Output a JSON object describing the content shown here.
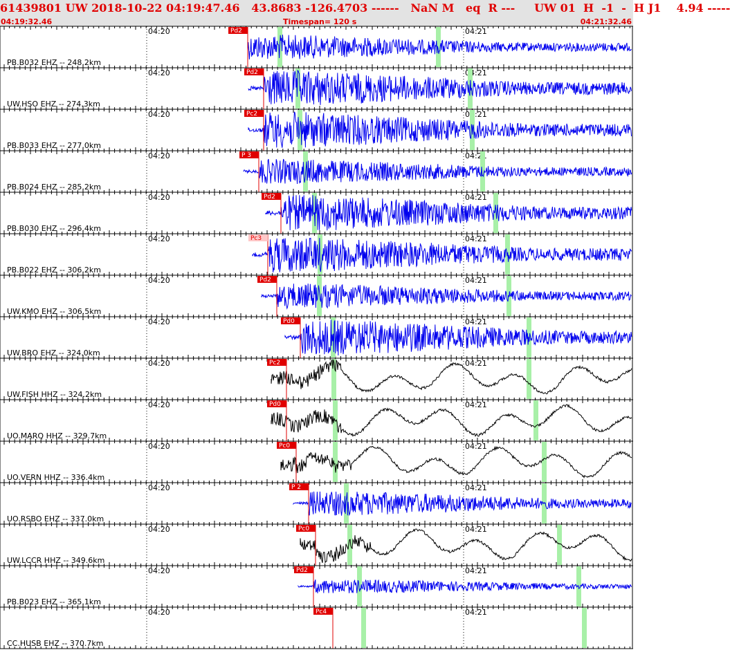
{
  "header": {
    "title": "61439801 UW 2018-10-22 04:19:47.46   43.8683 -126.4703 ------   NaN M   eq  R ---     UW 01  H  -1  -  H J1    4.94 -----",
    "start_time": "04:19:32.46",
    "timespan": "Timespan= 120 s",
    "end_time": "04:21:32.46"
  },
  "time_labels": [
    "04:20",
    "04:21"
  ],
  "colors": {
    "header_text": "#e00000",
    "velocity_trace": "#0000ee",
    "broadband_trace": "#000000",
    "pick": "#e00000",
    "window_marker": "#a8f0a8"
  },
  "traces": [
    {
      "label": "PB.B032 EHZ -- 248.2km",
      "pick": "Pd2",
      "color": "blue",
      "amp": "medium"
    },
    {
      "label": "UW.HSO EHZ -- 274.3km",
      "pick": "Pd2",
      "color": "blue",
      "amp": "large"
    },
    {
      "label": "PB.B033 EHZ -- 277.0km",
      "pick": "Pc2",
      "color": "blue",
      "amp": "large"
    },
    {
      "label": "PB.B024 EHZ -- 285.2km",
      "pick": "P 3",
      "color": "blue",
      "amp": "medium"
    },
    {
      "label": "PB.B030 EHZ -- 296.4km",
      "pick": "Pd2",
      "color": "blue",
      "amp": "large"
    },
    {
      "label": "PB.B022 EHZ -- 306.2km",
      "pick": "Pc3",
      "color": "blue",
      "amp": "large"
    },
    {
      "label": "UW.KMO EHZ -- 306.5km",
      "pick": "Pd2",
      "color": "blue",
      "amp": "medium"
    },
    {
      "label": "UW.BRO EHZ -- 324.0km",
      "pick": "Pd0",
      "color": "blue",
      "amp": "large"
    },
    {
      "label": "UW.FISH HHZ -- 324.2km",
      "pick": "Pc2",
      "color": "black",
      "amp": "wave"
    },
    {
      "label": "UO.MARQ HHZ -- 329.7km",
      "pick": "Pd0",
      "color": "black",
      "amp": "wave"
    },
    {
      "label": "UO.VERN HHZ -- 336.4km",
      "pick": "Pc0",
      "color": "black",
      "amp": "wave"
    },
    {
      "label": "UO.RSBO EHZ -- 337.0km",
      "pick": "P 2",
      "color": "blue",
      "amp": "medium"
    },
    {
      "label": "UW.LCCR HHZ -- 349.6km",
      "pick": "Pc0",
      "color": "black",
      "amp": "wave"
    },
    {
      "label": "PB.B023 EHZ -- 365.1km",
      "pick": "Pd2",
      "color": "blue",
      "amp": "small"
    },
    {
      "label": "CC.HUSB EHZ -- 370.7km",
      "pick": "Pc4",
      "color": "blue",
      "amp": "none"
    }
  ]
}
